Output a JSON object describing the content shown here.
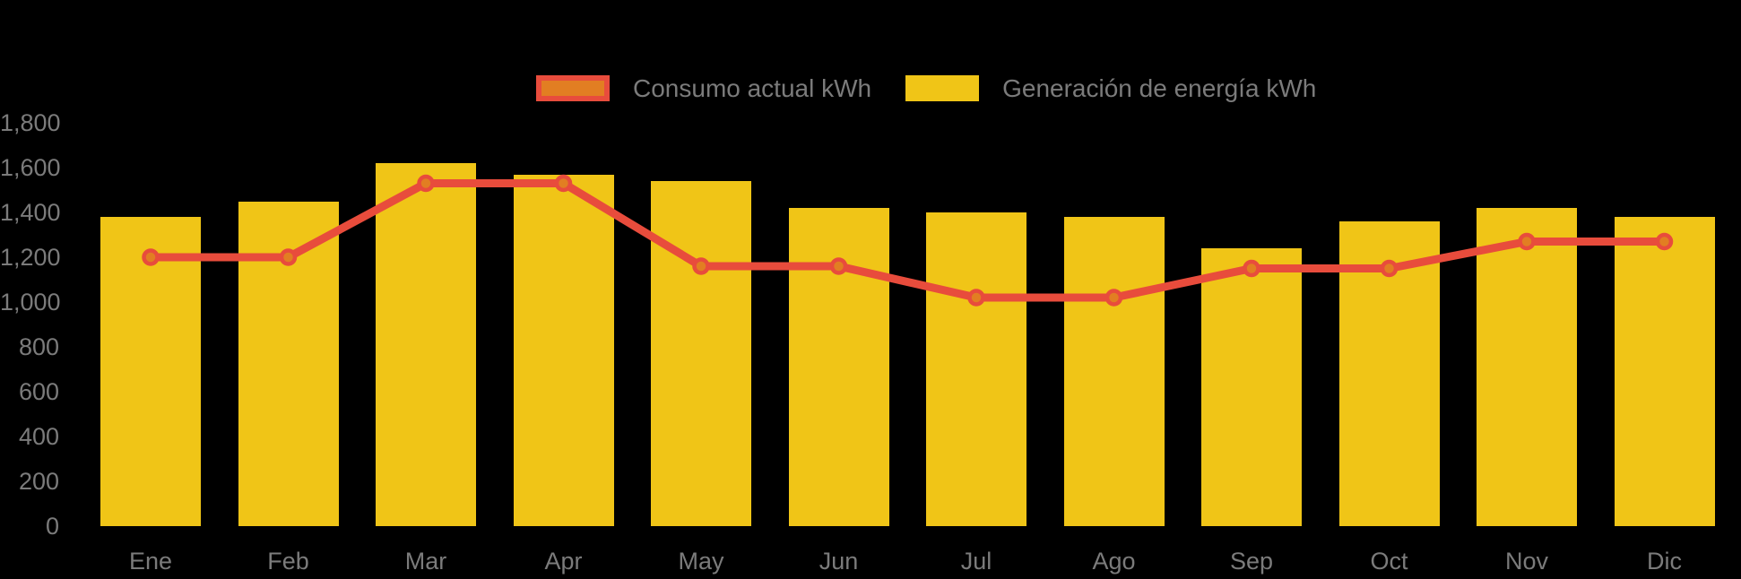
{
  "legend": {
    "items": [
      {
        "label": "Consumo actual kWh",
        "type": "line",
        "swatch_fill": "#E27E22",
        "swatch_border": "#E84C3C"
      },
      {
        "label": "Generación de energía kWh",
        "type": "bar",
        "swatch_fill": "#F0C517"
      }
    ]
  },
  "chart_data": {
    "type": "bar+line",
    "title": "",
    "xlabel": "",
    "ylabel": "",
    "categories": [
      "Ene",
      "Feb",
      "Mar",
      "Apr",
      "May",
      "Jun",
      "Jul",
      "Ago",
      "Sep",
      "Oct",
      "Nov",
      "Dic"
    ],
    "series": [
      {
        "name": "Generación de energía kWh",
        "type": "bar",
        "color": "#F0C517",
        "values": [
          1380,
          1450,
          1620,
          1570,
          1540,
          1420,
          1400,
          1380,
          1240,
          1360,
          1420,
          1380
        ]
      },
      {
        "name": "Consumo actual kWh",
        "type": "line",
        "color": "#E84C3C",
        "point_fill": "#E27E22",
        "values": [
          1200,
          1200,
          1530,
          1530,
          1160,
          1160,
          1020,
          1020,
          1150,
          1150,
          1270,
          1270
        ]
      }
    ],
    "ylim": [
      0,
      1800
    ],
    "ytick_step": 200,
    "ytick_labels": [
      "0",
      "200",
      "400",
      "600",
      "800",
      "1,000",
      "1,200",
      "1,400",
      "1,600",
      "1,800"
    ],
    "grid": false,
    "legend_position": "top-center",
    "background": "#000000",
    "axis_text_color": "#7B7B7B"
  }
}
